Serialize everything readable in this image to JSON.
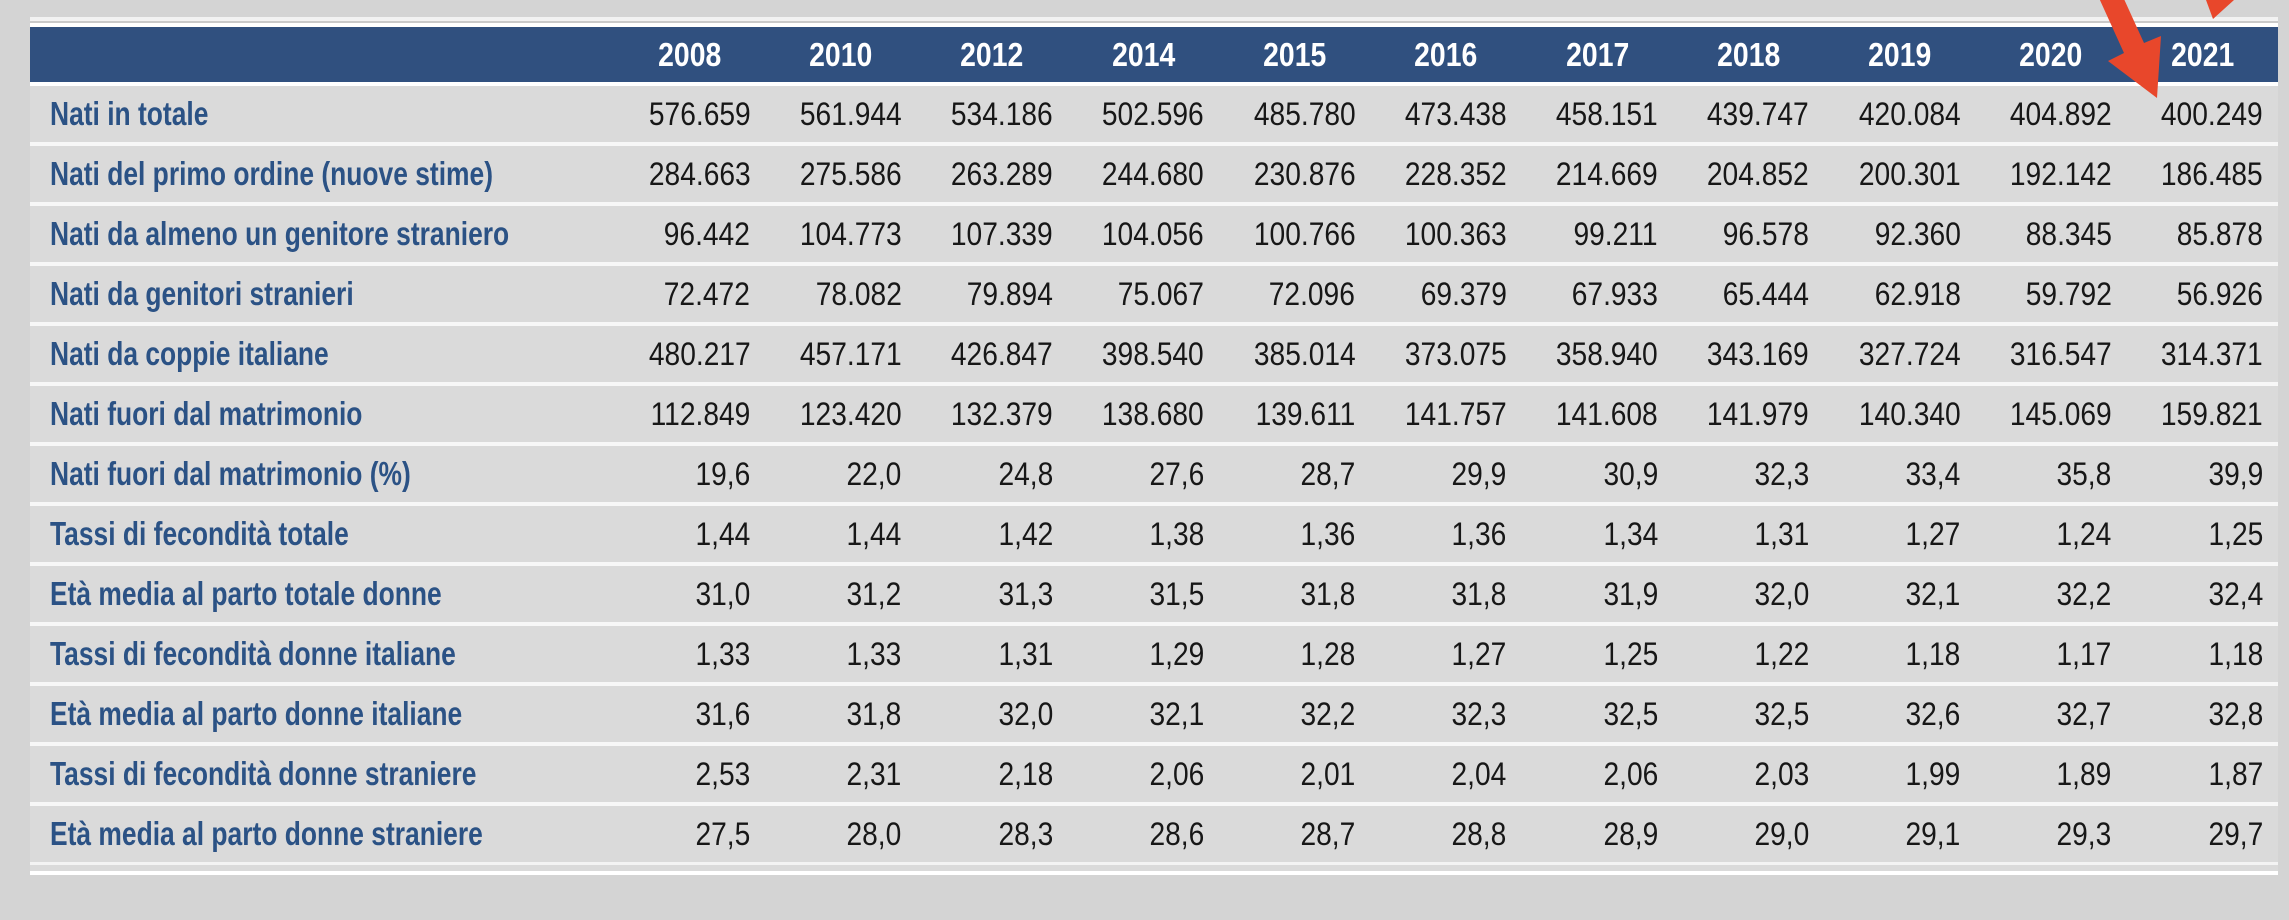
{
  "theme": {
    "page_bg": "#d4d4d4",
    "row_bg": "#dadada",
    "header_bg": "#30507f",
    "label_color": "#2b5285",
    "value_color": "#171717",
    "separator_color": "#f7f7f7",
    "arrow_color": "#e8472b"
  },
  "annotations": {
    "big_arrow": "red arrow pointing down at the 2021 column (value 400.249)",
    "small_arrow_fragment": "tip of a second red arrow clipped at the top edge"
  },
  "chart_data": {
    "type": "table",
    "title": "",
    "categories": [
      "2008",
      "2010",
      "2012",
      "2014",
      "2015",
      "2016",
      "2017",
      "2018",
      "2019",
      "2020",
      "2021"
    ],
    "series": [
      {
        "name": "Nati in totale",
        "values": [
          "576.659",
          "561.944",
          "534.186",
          "502.596",
          "485.780",
          "473.438",
          "458.151",
          "439.747",
          "420.084",
          "404.892",
          "400.249"
        ]
      },
      {
        "name": "Nati del primo ordine (nuove stime)",
        "values": [
          "284.663",
          "275.586",
          "263.289",
          "244.680",
          "230.876",
          "228.352",
          "214.669",
          "204.852",
          "200.301",
          "192.142",
          "186.485"
        ]
      },
      {
        "name": "Nati da almeno un genitore straniero",
        "values": [
          "96.442",
          "104.773",
          "107.339",
          "104.056",
          "100.766",
          "100.363",
          "99.211",
          "96.578",
          "92.360",
          "88.345",
          "85.878"
        ]
      },
      {
        "name": "Nati da genitori stranieri",
        "values": [
          "72.472",
          "78.082",
          "79.894",
          "75.067",
          "72.096",
          "69.379",
          "67.933",
          "65.444",
          "62.918",
          "59.792",
          "56.926"
        ]
      },
      {
        "name": "Nati da coppie italiane",
        "values": [
          "480.217",
          "457.171",
          "426.847",
          "398.540",
          "385.014",
          "373.075",
          "358.940",
          "343.169",
          "327.724",
          "316.547",
          "314.371"
        ]
      },
      {
        "name": "Nati fuori dal matrimonio",
        "values": [
          "112.849",
          "123.420",
          "132.379",
          "138.680",
          "139.611",
          "141.757",
          "141.608",
          "141.979",
          "140.340",
          "145.069",
          "159.821"
        ]
      },
      {
        "name": "Nati fuori dal matrimonio (%)",
        "values": [
          "19,6",
          "22,0",
          "24,8",
          "27,6",
          "28,7",
          "29,9",
          "30,9",
          "32,3",
          "33,4",
          "35,8",
          "39,9"
        ]
      },
      {
        "name": "Tassi di fecondità totale",
        "values": [
          "1,44",
          "1,44",
          "1,42",
          "1,38",
          "1,36",
          "1,36",
          "1,34",
          "1,31",
          "1,27",
          "1,24",
          "1,25"
        ]
      },
      {
        "name": "Età media al parto totale donne",
        "values": [
          "31,0",
          "31,2",
          "31,3",
          "31,5",
          "31,8",
          "31,8",
          "31,9",
          "32,0",
          "32,1",
          "32,2",
          "32,4"
        ]
      },
      {
        "name": "Tassi di fecondità donne italiane",
        "values": [
          "1,33",
          "1,33",
          "1,31",
          "1,29",
          "1,28",
          "1,27",
          "1,25",
          "1,22",
          "1,18",
          "1,17",
          "1,18"
        ]
      },
      {
        "name": "Età media al parto donne italiane",
        "values": [
          "31,6",
          "31,8",
          "32,0",
          "32,1",
          "32,2",
          "32,3",
          "32,5",
          "32,5",
          "32,6",
          "32,7",
          "32,8"
        ]
      },
      {
        "name": "Tassi di fecondità donne straniere",
        "values": [
          "2,53",
          "2,31",
          "2,18",
          "2,06",
          "2,01",
          "2,04",
          "2,06",
          "2,03",
          "1,99",
          "1,89",
          "1,87"
        ]
      },
      {
        "name": "Età media al parto donne straniere",
        "values": [
          "27,5",
          "28,0",
          "28,3",
          "28,6",
          "28,7",
          "28,8",
          "28,9",
          "29,0",
          "29,1",
          "29,3",
          "29,7"
        ]
      }
    ]
  }
}
